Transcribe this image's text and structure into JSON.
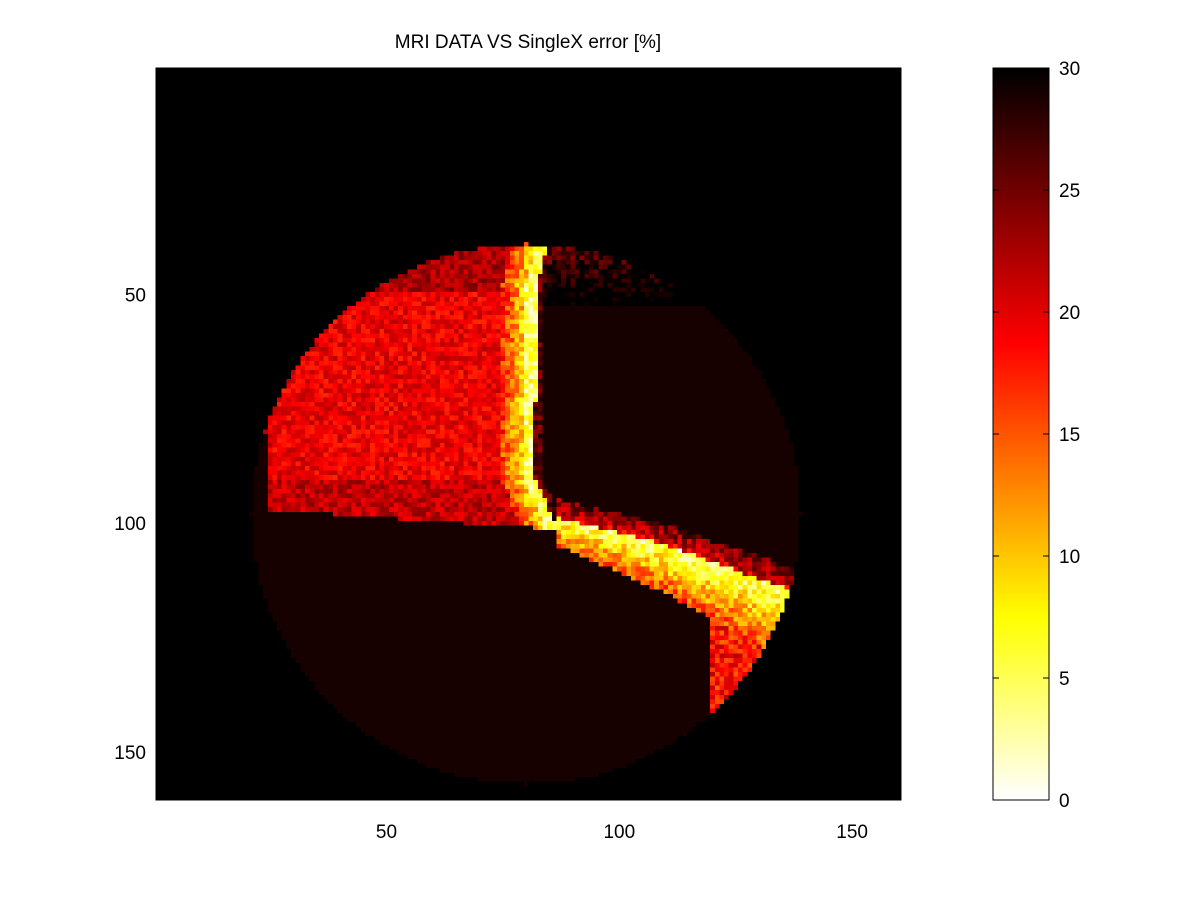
{
  "chart_data": {
    "type": "heatmap",
    "title": "MRI DATA VS SingleX error [%]",
    "xlabel": "",
    "ylabel": "",
    "xlim": [
      0.5,
      160.5
    ],
    "ylim": [
      0.5,
      160.5
    ],
    "y_axis_reversed": true,
    "x_ticks": [
      50,
      100,
      150
    ],
    "y_ticks": [
      50,
      100,
      150
    ],
    "image_size": [
      160,
      160
    ],
    "clim": [
      0,
      30
    ],
    "colormap": "hot (reversed)",
    "colorbar": {
      "location": "right",
      "ticks": [
        0,
        5,
        10,
        15,
        20,
        25,
        30
      ]
    },
    "regions": {
      "outside_fov_value": 30,
      "fov_background_value": 29,
      "fov_circle": {
        "center_col": 80,
        "center_row": 98,
        "radius": 59
      },
      "left_ventricle_wall": {
        "typical_error": 20,
        "min_error": 5,
        "max_error": 26
      },
      "right_region": {
        "typical_error": 29
      },
      "septum_band": {
        "min_error": 3
      },
      "lower_right_band": {
        "min_error": 4,
        "max_error": 24
      }
    }
  }
}
